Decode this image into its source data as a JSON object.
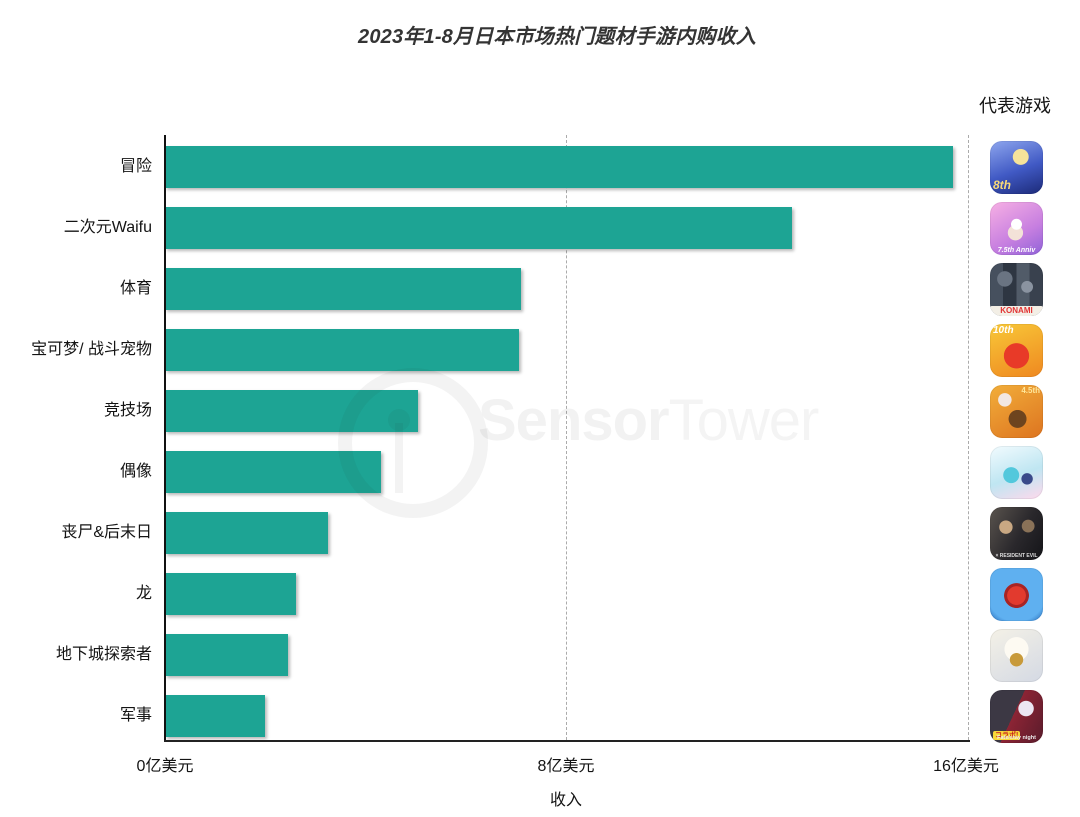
{
  "title": "2023年1-8月日本市场热门题材手游内购收入",
  "legend_header": "代表游戏",
  "watermark": {
    "part_bold": "Sensor",
    "part_light": "Tower"
  },
  "chart_data": {
    "type": "bar",
    "orientation": "horizontal",
    "title": "2023年1-8月日本市场热门题材手游内购收入",
    "xlabel": "收入",
    "unit": "亿美元",
    "xlim": [
      0,
      16
    ],
    "x_ticks": [
      {
        "value": 0,
        "label": "0亿美元"
      },
      {
        "value": 8,
        "label": "8亿美元"
      },
      {
        "value": 16,
        "label": "16亿美元"
      }
    ],
    "gridlines": {
      "style": "dashed",
      "at_values": [
        8,
        16
      ]
    },
    "bar_color": "#1DA494",
    "categories": [
      "冒险",
      "二次元Waifu",
      "体育",
      "宝可梦/ 战斗宠物",
      "竞技场",
      "偶像",
      "丧尸&后末日",
      "龙",
      "地下城探索者",
      "军事"
    ],
    "values": [
      15.7,
      12.5,
      7.1,
      7.05,
      5.05,
      4.3,
      3.25,
      2.6,
      2.45,
      2.0
    ]
  },
  "representative_games": [
    {
      "name": "game-icon-blue-knight-8th-anniv",
      "desc": "blue anime knight with crown, gold 8th",
      "bg": "radial-gradient(circle at 58% 30%, #f6e39a 0 16%, rgba(0,0,0,0) 17%), linear-gradient(160deg,#8ea6ee 0%,#4059c4 55%,#1c2a78 100%)",
      "labels": [
        {
          "t": "8th",
          "c": "#f8d878",
          "bg": "",
          "pos": "bl",
          "fs": 12,
          "fw": "700",
          "italic": true
        }
      ]
    },
    {
      "name": "game-icon-pink-anime-girl-75-anniv",
      "desc": "pink/purple anime girl",
      "bg": "radial-gradient(circle at 50% 42%, #ffffff 0 13%, rgba(0,0,0,0) 14%), radial-gradient(circle at 48% 58%, #f3e2d8 0 18%, rgba(0,0,0,0) 19%), linear-gradient(150deg,#f7b0e4 0%,#c77fe0 60%,#8f62d8 100%)",
      "labels": [
        {
          "t": "7.5th Anniv",
          "c": "#ffffff",
          "bg": "",
          "pos": "b",
          "fs": 7,
          "fw": "700",
          "italic": true
        }
      ]
    },
    {
      "name": "game-icon-baseball-players-konami",
      "desc": "baseball players collage with KONAMI logo",
      "bg": "radial-gradient(circle at 28% 30%, #6a7482 0 14%, rgba(0,0,0,0) 15%), radial-gradient(circle at 70% 45%, #8a93a0 0 12%, rgba(0,0,0,0) 13%), linear-gradient(90deg,#46505e 0%,#46505e 25%,#2e3642 25%,#2e3642 50%,#515b68 50%,#515b68 75%,#39414e 75%,#39414e 100%)",
      "labels": [
        {
          "t": "KONAMI",
          "c": "#e23333",
          "bg": "#f3efe6",
          "pos": "b",
          "fs": 8,
          "fw": "800",
          "italic": false
        }
      ]
    },
    {
      "name": "game-icon-red-monster-10th",
      "desc": "red round monster on orange, 10th anniversary",
      "bg": "radial-gradient(circle at 50% 60%, #e83a28 0 30%, rgba(0,0,0,0) 31%), linear-gradient(160deg,#f8c838 0%,#ef8820 100%)",
      "labels": [
        {
          "t": "10th",
          "c": "#ffffff",
          "bg": "",
          "pos": "tl",
          "fs": 10,
          "fw": "800",
          "italic": true
        }
      ]
    },
    {
      "name": "game-icon-straw-hat-pirate-orange",
      "desc": "straw-hat pirate on orange, 4.5 banner",
      "bg": "radial-gradient(circle at 52% 64%, #6e441e 0 20%, rgba(0,0,0,0) 21%), radial-gradient(circle at 28% 28%, #f2e7e2 0 12%, rgba(0,0,0,0) 13%), linear-gradient(150deg,#f2ae3a 0%,#dd7420 100%)",
      "labels": [
        {
          "t": "4.5th",
          "c": "#ffe79a",
          "bg": "",
          "pos": "tr",
          "fs": 8,
          "fw": "800",
          "italic": false
        }
      ]
    },
    {
      "name": "game-icon-teal-idol-girls",
      "desc": "teal-haired idol girls on pale blue/pink",
      "bg": "radial-gradient(circle at 40% 55%, #52c8dc 0 18%, rgba(0,0,0,0) 19%), radial-gradient(circle at 70% 62%, #3a4a8a 0 11%, rgba(0,0,0,0) 12%), linear-gradient(160deg,#f2fbfe 0%,#bfe6f2 55%,#ffd9ec 100%)",
      "labels": []
    },
    {
      "name": "game-icon-survival-horror-duo",
      "desc": "two dark survival-horror characters",
      "bg": "radial-gradient(circle at 30% 38%, #c9a883 0 13%, rgba(0,0,0,0) 14%), radial-gradient(circle at 72% 36%, #8a7258 0 12%, rgba(0,0,0,0) 13%), linear-gradient(120deg,#5a544e 0%,#2a282c 55%,#141418 100%)",
      "labels": [
        {
          "t": "× RESIDENT EVIL",
          "c": "#dddddd",
          "bg": "",
          "pos": "b",
          "fs": 5,
          "fw": "700",
          "italic": false
        }
      ]
    },
    {
      "name": "game-icon-red-dragon-blue",
      "desc": "red dragon on blue puzzle background",
      "bg": "radial-gradient(circle at 50% 52%, #e23a2e 0 24%, #a82424 25% 32%, rgba(0,0,0,0) 33%), radial-gradient(circle at 50% 45%, #5fb0f0 0 75%, #2468b8 100%)",
      "labels": []
    },
    {
      "name": "game-icon-white-gold-warrior",
      "desc": "white/gold laughing warrior",
      "bg": "radial-gradient(circle at 50% 58%, #c89a3a 0 16%, rgba(0,0,0,0) 17%), radial-gradient(circle at 50% 38%, #fdfaf2 0 28%, rgba(0,0,0,0) 29%), linear-gradient(150deg,#f4f1e6 0%,#d4d9e4 100%)",
      "labels": []
    },
    {
      "name": "game-icon-fate-collab-military",
      "desc": "dark mech and white-haired girl, collab badge",
      "bg": "radial-gradient(circle at 68% 35%, #ece6f2 0 15%, rgba(0,0,0,0) 16%), linear-gradient(115deg,#3c3844 0%,#3c3844 45%,#8c2434 45%,#5a1c2c 100%)",
      "labels": [
        {
          "t": "コラボ!",
          "c": "#c82020",
          "bg": "#f8d838",
          "pos": "bl",
          "fs": 7,
          "fw": "800",
          "italic": false
        },
        {
          "t": "Fate/stay night",
          "c": "#eeeeee",
          "bg": "",
          "pos": "b",
          "fs": 5.5,
          "fw": "700",
          "italic": false
        }
      ]
    }
  ]
}
